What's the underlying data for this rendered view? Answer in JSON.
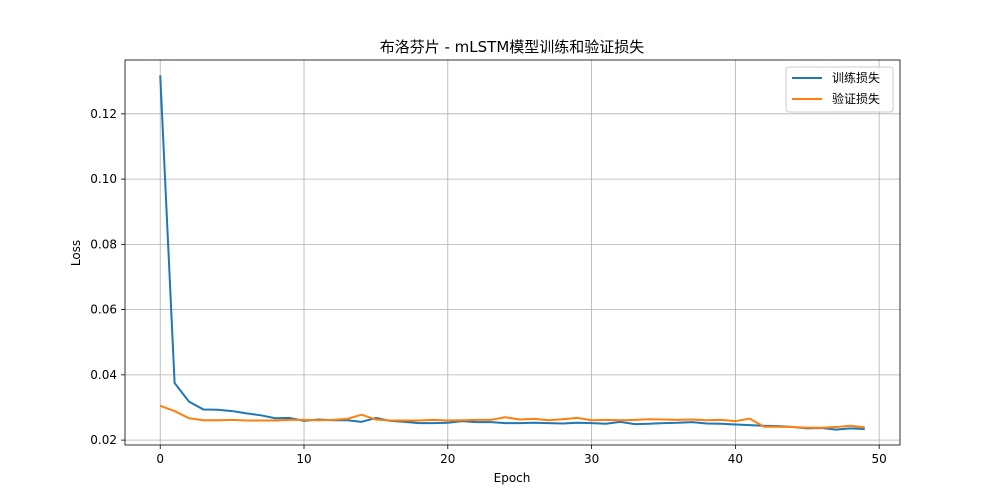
{
  "chart_data": {
    "type": "line",
    "title": "布洛芬片 - mLSTM模型训练和验证损失",
    "xlabel": "Epoch",
    "ylabel": "Loss",
    "xlim": [
      -2.45,
      51.45
    ],
    "ylim": [
      0.0185,
      0.1365
    ],
    "xticks": [
      0,
      10,
      20,
      30,
      40,
      50
    ],
    "yticks": [
      0.02,
      0.04,
      0.06,
      0.08,
      0.1,
      0.12
    ],
    "ytick_labels": [
      "0.02",
      "0.04",
      "0.06",
      "0.08",
      "0.10",
      "0.12"
    ],
    "grid": true,
    "legend_position": "top-right",
    "x": [
      0,
      1,
      2,
      3,
      4,
      5,
      6,
      7,
      8,
      9,
      10,
      11,
      12,
      13,
      14,
      15,
      16,
      17,
      18,
      19,
      20,
      21,
      22,
      23,
      24,
      25,
      26,
      27,
      28,
      29,
      30,
      31,
      32,
      33,
      34,
      35,
      36,
      37,
      38,
      39,
      40,
      41,
      42,
      43,
      44,
      45,
      46,
      47,
      48,
      49
    ],
    "series": [
      {
        "name": "训练损失",
        "color": "#1f77b4",
        "values": [
          0.1318,
          0.0375,
          0.0318,
          0.0294,
          0.0293,
          0.0289,
          0.0282,
          0.0276,
          0.0267,
          0.0268,
          0.0259,
          0.0263,
          0.0261,
          0.0261,
          0.0256,
          0.0268,
          0.0259,
          0.0256,
          0.0252,
          0.0252,
          0.0253,
          0.0258,
          0.0255,
          0.0255,
          0.0252,
          0.0252,
          0.0253,
          0.0252,
          0.0251,
          0.0253,
          0.0252,
          0.025,
          0.0256,
          0.0249,
          0.025,
          0.0252,
          0.0253,
          0.0255,
          0.0251,
          0.025,
          0.0248,
          0.0246,
          0.0244,
          0.0243,
          0.024,
          0.0236,
          0.0237,
          0.0232,
          0.0236,
          0.0234
        ]
      },
      {
        "name": "验证损失",
        "color": "#ff7f0e",
        "values": [
          0.0305,
          0.0289,
          0.0267,
          0.0261,
          0.0261,
          0.0262,
          0.026,
          0.026,
          0.026,
          0.0262,
          0.0262,
          0.0261,
          0.0262,
          0.0265,
          0.0278,
          0.0263,
          0.026,
          0.026,
          0.026,
          0.0262,
          0.026,
          0.0261,
          0.0262,
          0.0262,
          0.027,
          0.0263,
          0.0265,
          0.0261,
          0.0264,
          0.0268,
          0.0261,
          0.0262,
          0.0261,
          0.0262,
          0.0264,
          0.0263,
          0.0262,
          0.0263,
          0.0261,
          0.0262,
          0.0258,
          0.0266,
          0.0241,
          0.0241,
          0.024,
          0.0238,
          0.0238,
          0.024,
          0.0244,
          0.0239
        ]
      }
    ]
  }
}
